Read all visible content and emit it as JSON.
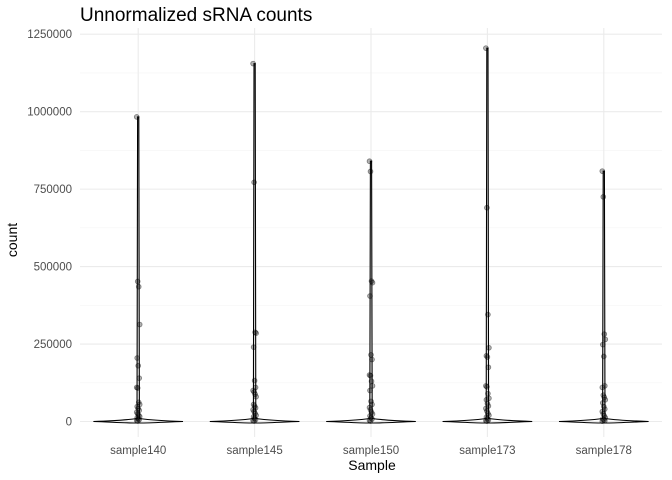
{
  "chart_data": {
    "type": "violin+jitter",
    "title": "Unnormalized sRNA counts",
    "xlabel": "Sample",
    "ylabel": "count",
    "ylim": [
      -50000,
      1270000
    ],
    "yticks": [
      0,
      250000,
      500000,
      750000,
      1000000,
      1250000
    ],
    "ytick_labels": [
      "0",
      "250000",
      "500000",
      "750000",
      "1000000",
      "1250000"
    ],
    "categories": [
      "sample140",
      "sample145",
      "sample150",
      "sample173",
      "sample178"
    ],
    "series": [
      {
        "name": "sample140",
        "max": 983000,
        "points": [
          983000,
          452000,
          435000,
          313000,
          205000,
          180000,
          140000,
          110000,
          108000,
          62000,
          55000,
          48000,
          42000,
          36000,
          30000,
          25000,
          20000,
          16000,
          12000,
          9000,
          6000,
          3000,
          1500
        ]
      },
      {
        "name": "sample145",
        "max": 1155000,
        "points": [
          1155000,
          772000,
          288000,
          285000,
          240000,
          132000,
          110000,
          100000,
          95000,
          88000,
          80000,
          55000,
          50000,
          44000,
          38000,
          32000,
          26000,
          20000,
          15000,
          10000,
          6000,
          3000,
          1500
        ]
      },
      {
        "name": "sample150",
        "max": 840000,
        "points": [
          840000,
          807000,
          453000,
          448000,
          405000,
          215000,
          200000,
          150000,
          148000,
          130000,
          115000,
          100000,
          65000,
          55000,
          45000,
          38000,
          30000,
          24000,
          18000,
          12000,
          8000,
          4000,
          1500
        ]
      },
      {
        "name": "sample173",
        "max": 1205000,
        "points": [
          1205000,
          690000,
          345000,
          238000,
          212000,
          208000,
          175000,
          115000,
          112000,
          90000,
          75000,
          70000,
          58000,
          50000,
          42000,
          34000,
          26000,
          20000,
          14000,
          9000,
          5000,
          2500,
          1000
        ]
      },
      {
        "name": "sample178",
        "max": 808000,
        "points": [
          808000,
          725000,
          282000,
          265000,
          248000,
          210000,
          115000,
          110000,
          85000,
          78000,
          70000,
          60000,
          48000,
          40000,
          32000,
          25000,
          18000,
          12000,
          8000,
          5000,
          2500,
          1000
        ]
      }
    ]
  }
}
